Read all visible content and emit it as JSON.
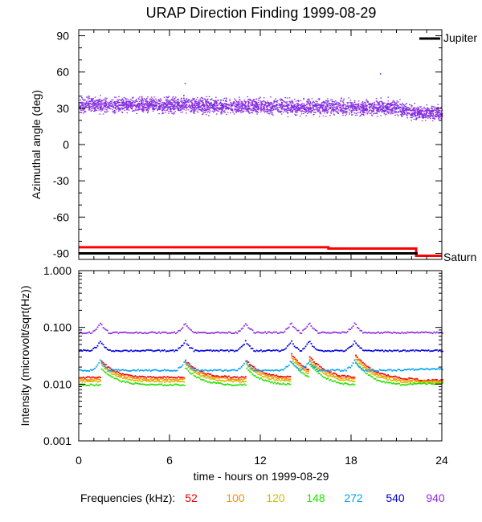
{
  "chart_data": [
    {
      "type": "scatter",
      "title": "URAP Direction Finding  1999-08-29",
      "ylabel": "Azimuthal angle (deg)",
      "ylim": [
        -95,
        95
      ],
      "yticks": [
        "90",
        "60",
        "30",
        "0",
        "-30",
        "-60",
        "-90"
      ],
      "xlim": [
        0,
        24
      ],
      "markers": [
        {
          "label": "Jupiter",
          "color": "#000000"
        },
        {
          "label": "Saturn",
          "color": "#ff0000"
        }
      ],
      "scatter_color": "#8a2be2",
      "scatter_trend": [
        {
          "x": 0,
          "y": 33
        },
        {
          "x": 6,
          "y": 33
        },
        {
          "x": 12,
          "y": 32
        },
        {
          "x": 18,
          "y": 31
        },
        {
          "x": 21,
          "y": 31
        },
        {
          "x": 22,
          "y": 27
        },
        {
          "x": 24,
          "y": 26
        }
      ],
      "outliers": [
        {
          "x": 7.0,
          "y": 51
        },
        {
          "x": 19.9,
          "y": 59
        }
      ],
      "jupiter_line": [
        {
          "x": 0,
          "y": -90
        },
        {
          "x": 22.4,
          "y": -90
        }
      ],
      "saturn_line": [
        {
          "x": 0,
          "y": -85
        },
        {
          "x": 16.5,
          "y": -85
        },
        {
          "x": 16.5,
          "y": -86
        },
        {
          "x": 22.3,
          "y": -86
        },
        {
          "x": 22.3,
          "y": -92
        },
        {
          "x": 24,
          "y": -92
        }
      ]
    },
    {
      "type": "line",
      "ylabel": "Intensity (microvolt/sqrt(Hz))",
      "xlabel": "time - hours on 1999-08-29",
      "yscale": "log",
      "ylim": [
        0.001,
        1.0
      ],
      "yticks": [
        "1.000",
        "0.100",
        "0.010",
        "0.001"
      ],
      "xlim": [
        0,
        24
      ],
      "xticks": [
        "0",
        "6",
        "12",
        "18",
        "24"
      ],
      "legend_title": "Frequencies (kHz):",
      "bursts": [
        1.4,
        7.0,
        11.0,
        14.0,
        15.2,
        18.2
      ],
      "series": [
        {
          "name": "52",
          "color": "#e8000b",
          "baseline": 0.0135,
          "last": 0.012
        },
        {
          "name": "100",
          "color": "#ff8c00",
          "baseline": 0.0125,
          "last": 0.0115
        },
        {
          "name": "120",
          "color": "#d4b800",
          "baseline": 0.0115,
          "last": 0.011
        },
        {
          "name": "148",
          "color": "#22e000",
          "baseline": 0.01,
          "last": 0.0105
        },
        {
          "name": "272",
          "color": "#00a0f0",
          "baseline": 0.018,
          "last": 0.019
        },
        {
          "name": "540",
          "color": "#0000e0",
          "baseline": 0.04,
          "last": 0.04
        },
        {
          "name": "940",
          "color": "#8a2be2",
          "baseline": 0.083,
          "last": 0.083
        }
      ]
    }
  ]
}
